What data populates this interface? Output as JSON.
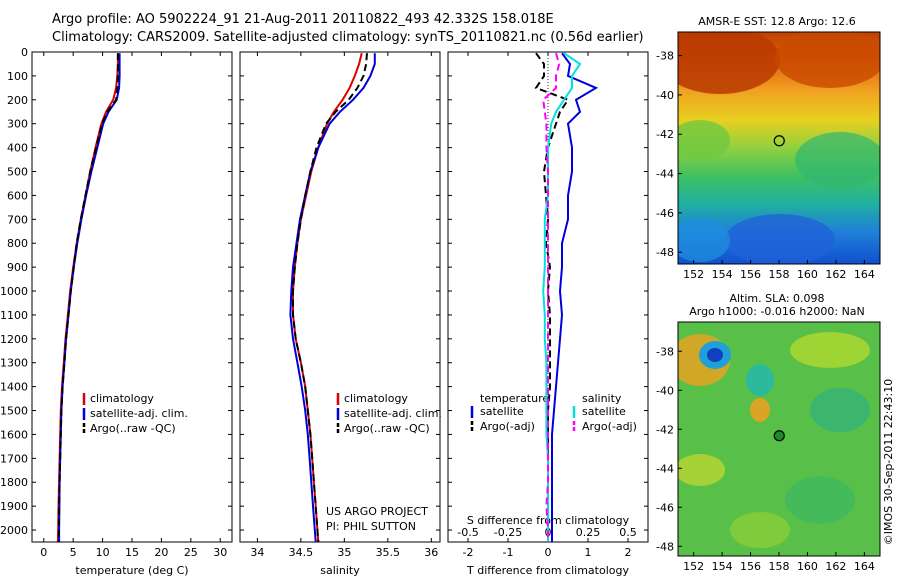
{
  "header": {
    "title": "Argo profile: AO 5902224_91 21-Aug-2011 20110822_493 42.332S 158.018E",
    "subtitle": "Climatology: CARS2009. Satellite-adjusted climatology: synTS_20110821.nc (0.56d earlier)"
  },
  "maps": {
    "sst_title": "AMSR-E SST: 12.8 Argo: 12.6",
    "sla_title_1": "Altim. SLA: 0.098",
    "sla_title_2": "Argo h1000: -0.016 h2000: NaN",
    "side_label": "©IMOS 30-Sep-2011 22:43:10",
    "lat_ticks": [
      "-38",
      "-40",
      "-42",
      "-44",
      "-46",
      "-48"
    ],
    "lon_ticks": [
      "152",
      "154",
      "156",
      "158",
      "160",
      "162",
      "164"
    ],
    "argo_position": {
      "lon": 158.018,
      "lat": -42.332
    }
  },
  "annotations": {
    "project": "US ARGO PROJECT",
    "pi": "PI: PHIL SUTTON"
  },
  "legends": {
    "profile": [
      "climatology",
      "satellite-adj. clim.",
      "Argo(..raw -QC)"
    ],
    "diff_temperature_head": "temperature",
    "diff_salinity_head": "salinity",
    "diff_items": [
      "satellite",
      "Argo(-adj)"
    ],
    "colors": {
      "climatology": "#dd0000",
      "satellite": "#0000dd",
      "argo": "#000000",
      "salinity_sat": "#00e0e0",
      "salinity_argo": "#ff00ff"
    }
  },
  "chart_data": [
    {
      "type": "line",
      "xlabel": "temperature (deg C)",
      "xlim": [
        -2,
        32
      ],
      "ylim": [
        2050,
        0
      ],
      "xticks": [
        "0",
        "5",
        "10",
        "15",
        "20",
        "25",
        "30"
      ],
      "yticks": [
        "0",
        "100",
        "200",
        "300",
        "400",
        "500",
        "600",
        "700",
        "800",
        "900",
        "1000",
        "1100",
        "1200",
        "1300",
        "1400",
        "1500",
        "1600",
        "1700",
        "1800",
        "1900",
        "2000"
      ],
      "depth": [
        5,
        50,
        100,
        150,
        200,
        250,
        300,
        400,
        500,
        600,
        700,
        800,
        900,
        1000,
        1100,
        1200,
        1300,
        1400,
        1500,
        1600,
        1700,
        1800,
        1900,
        2000,
        2050
      ],
      "series": [
        {
          "name": "climatology",
          "values": [
            12.6,
            12.6,
            12.5,
            12.3,
            11.8,
            10.6,
            9.8,
            8.8,
            7.9,
            7.1,
            6.3,
            5.6,
            5.0,
            4.5,
            4.1,
            3.7,
            3.4,
            3.1,
            2.9,
            2.8,
            2.7,
            2.6,
            2.5,
            2.45,
            2.4
          ]
        },
        {
          "name": "satellite-adj. clim.",
          "values": [
            12.9,
            12.9,
            12.9,
            12.8,
            12.4,
            11.0,
            10.1,
            9.1,
            8.1,
            7.2,
            6.4,
            5.7,
            5.1,
            4.6,
            4.2,
            3.8,
            3.5,
            3.2,
            3.0,
            2.9,
            2.8,
            2.7,
            2.65,
            2.6,
            2.6
          ]
        },
        {
          "name": "Argo(..raw -QC)",
          "values": [
            12.6,
            12.6,
            12.6,
            12.5,
            12.3,
            10.8,
            9.9,
            8.9,
            7.9,
            7.1,
            6.3,
            5.6,
            5.1,
            4.6,
            4.2,
            3.8,
            3.5,
            3.2,
            3.0,
            2.9,
            2.8,
            2.7,
            2.6,
            2.55,
            2.5
          ]
        }
      ]
    },
    {
      "type": "line",
      "xlabel": "salinity",
      "xlim": [
        33.8,
        36.1
      ],
      "ylim": [
        2050,
        0
      ],
      "xticks": [
        "34",
        "34.5",
        "35",
        "35.5",
        "36"
      ],
      "depth": [
        5,
        50,
        100,
        150,
        200,
        250,
        300,
        400,
        500,
        600,
        700,
        800,
        900,
        1000,
        1100,
        1200,
        1300,
        1400,
        1500,
        1600,
        1700,
        1800,
        1900,
        2000,
        2050
      ],
      "series": [
        {
          "name": "climatology",
          "values": [
            35.2,
            35.17,
            35.12,
            35.06,
            34.98,
            34.88,
            34.8,
            34.7,
            34.62,
            34.56,
            34.5,
            34.46,
            34.43,
            34.41,
            34.41,
            34.44,
            34.5,
            34.55,
            34.58,
            34.61,
            34.63,
            34.65,
            34.67,
            34.69,
            34.7
          ]
        },
        {
          "name": "satellite-adj. clim.",
          "values": [
            35.35,
            35.35,
            35.3,
            35.22,
            35.1,
            34.95,
            34.83,
            34.7,
            34.61,
            34.55,
            34.49,
            34.45,
            34.41,
            34.39,
            34.38,
            34.41,
            34.46,
            34.51,
            34.55,
            34.58,
            34.6,
            34.62,
            34.64,
            34.66,
            34.67
          ]
        },
        {
          "name": "Argo(..raw -QC)",
          "values": [
            35.26,
            35.25,
            35.22,
            35.15,
            35.05,
            34.9,
            34.79,
            34.68,
            34.61,
            34.55,
            34.5,
            34.46,
            34.43,
            34.41,
            34.41,
            34.44,
            34.5,
            34.55,
            34.58,
            34.61,
            34.63,
            34.65,
            34.67,
            34.69,
            34.7
          ]
        }
      ]
    },
    {
      "type": "line",
      "xlabel": "T difference from climatology",
      "xlabel_top": "S difference from climatology",
      "xlim": [
        -2.5,
        2.5
      ],
      "ylim": [
        2050,
        0
      ],
      "xticks": [
        "-2",
        "-1",
        "0",
        "1",
        "2"
      ],
      "xticks_top": [
        "-0.5",
        "-0.25",
        "0",
        "0.25",
        "0.5"
      ],
      "depth": [
        5,
        50,
        100,
        150,
        200,
        250,
        300,
        400,
        500,
        600,
        700,
        800,
        900,
        1000,
        1100,
        1200,
        1300,
        1400,
        1500,
        1600,
        1700,
        1800,
        1900,
        2000,
        2050
      ],
      "series": [
        {
          "name": "temperature satellite",
          "values": [
            0.35,
            0.55,
            0.5,
            1.2,
            0.7,
            0.8,
            0.5,
            0.6,
            0.6,
            0.5,
            0.5,
            0.35,
            0.35,
            0.3,
            0.35,
            0.3,
            0.25,
            0.2,
            0.15,
            0.1,
            0.1,
            0.1,
            0.1,
            0.1,
            0.1
          ]
        },
        {
          "name": "temperature Argo(-adj)",
          "values": [
            -0.3,
            -0.1,
            -0.1,
            -0.3,
            0.5,
            0.3,
            0.2,
            0.0,
            -0.1,
            -0.05,
            0.0,
            -0.05,
            0.05,
            0.0,
            0.05,
            0.05,
            0.05,
            0.05,
            0.0,
            0.0,
            0.0,
            0.0,
            0.0,
            0.0,
            0.0
          ]
        },
        {
          "name": "salinity satellite",
          "values": [
            0.1,
            0.2,
            0.15,
            0.15,
            0.1,
            0.05,
            0.02,
            0.0,
            0.0,
            0.0,
            -0.02,
            -0.02,
            -0.02,
            -0.03,
            -0.02,
            -0.02,
            -0.01,
            -0.01,
            -0.01,
            -0.01,
            0.0,
            0.0,
            0.0,
            0.0,
            0.0
          ]
        },
        {
          "name": "salinity Argo(-adj)",
          "values": [
            0.05,
            0.07,
            0.05,
            0.05,
            -0.03,
            -0.02,
            -0.01,
            -0.01,
            0.0,
            0.0,
            0.0,
            0.0,
            0.0,
            0.0,
            0.0,
            0.0,
            0.0,
            0.0,
            0.0,
            0.0,
            0.0,
            0.0,
            -0.01,
            0.0,
            0.0
          ]
        }
      ]
    }
  ]
}
